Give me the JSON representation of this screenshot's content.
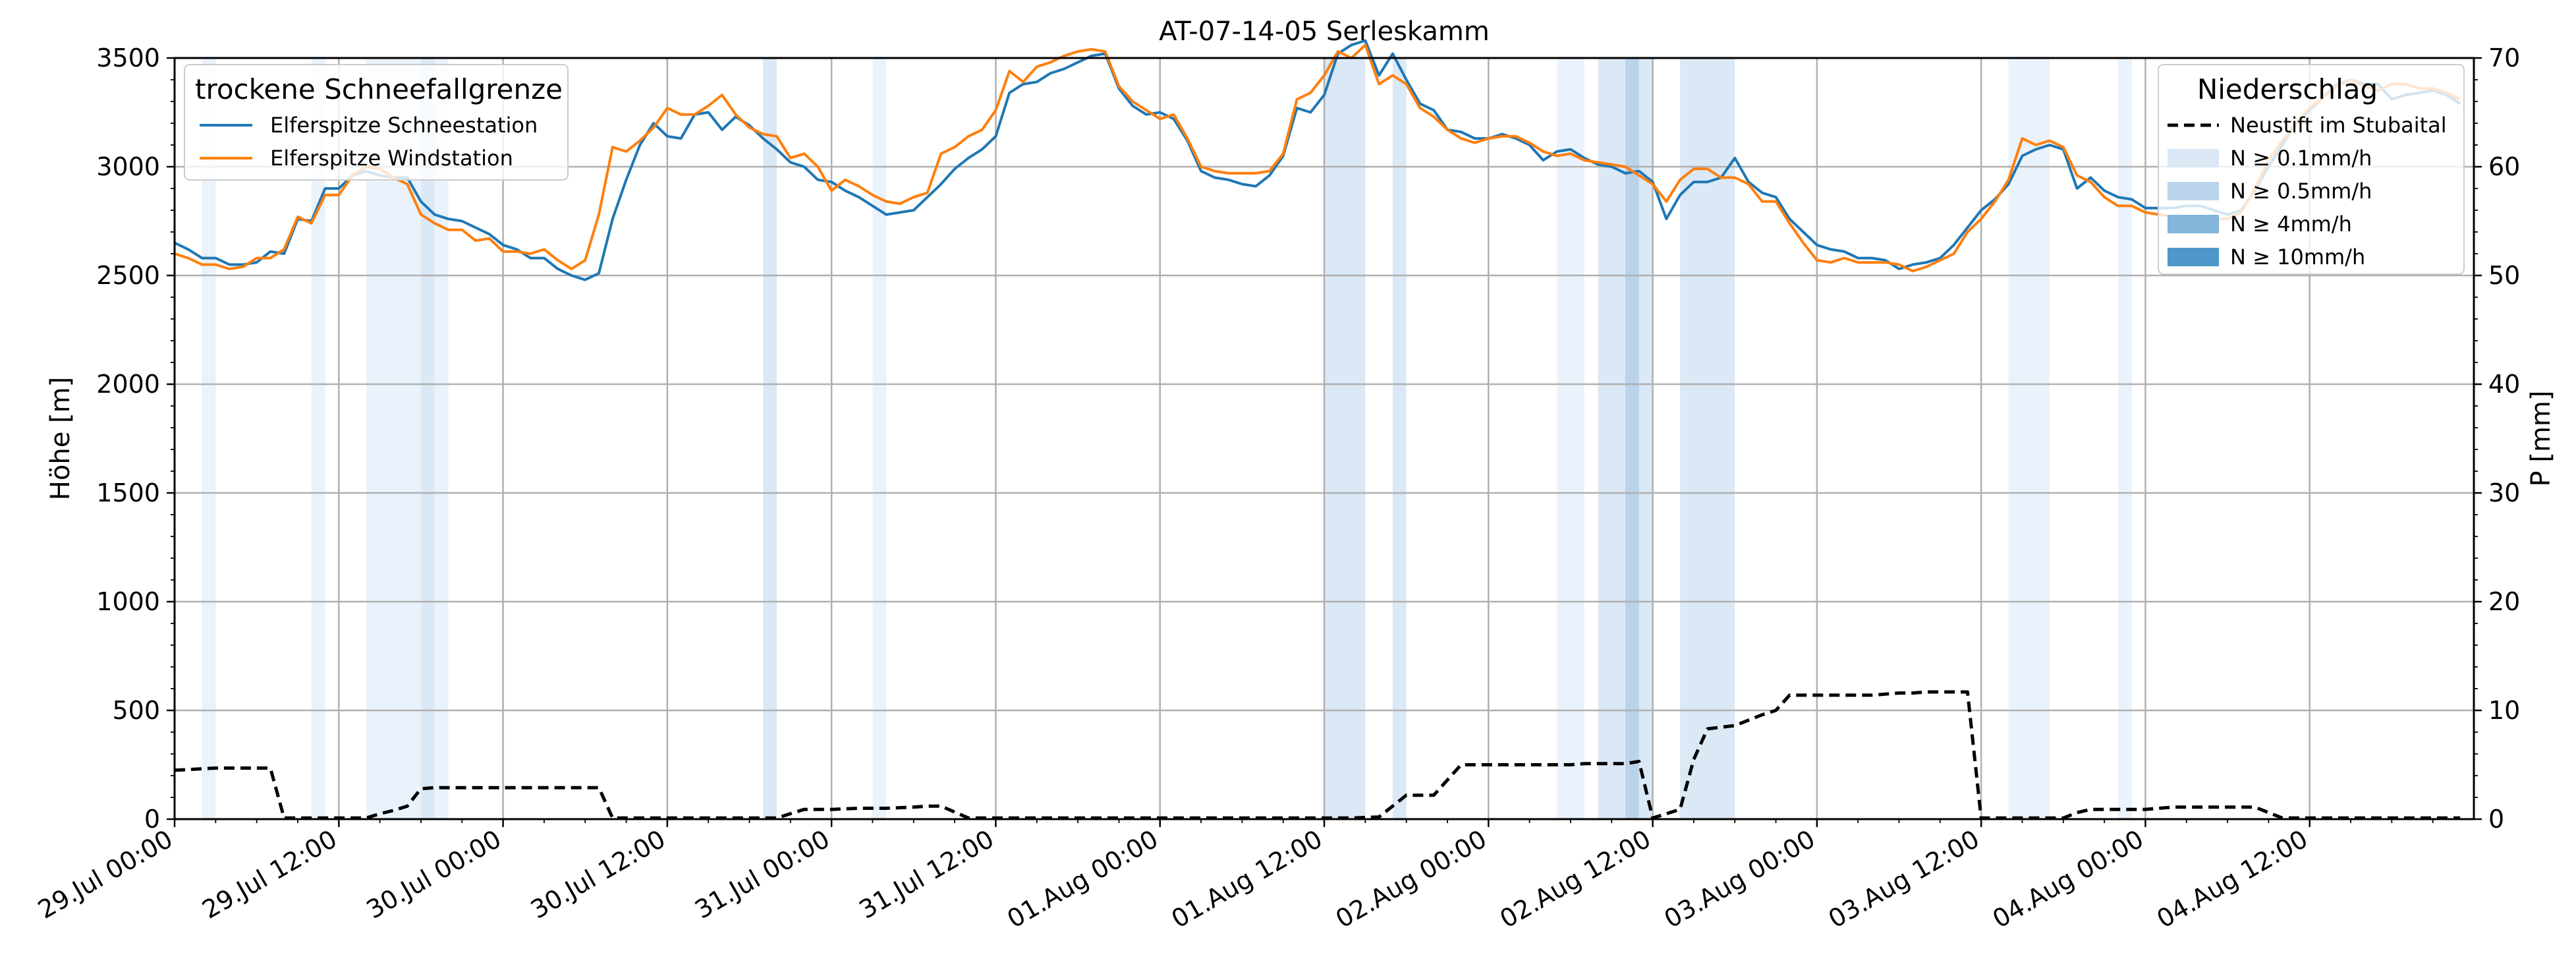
{
  "chart_data": {
    "type": "line",
    "title": "AT-07-14-05 Serleskamm",
    "ylabel": "Höhe [m]",
    "ylabel_right": "P [mm]",
    "ylim": [
      0,
      3500
    ],
    "ylim_right": [
      0,
      70
    ],
    "xlim": [
      "2025-07-29T00:00",
      "2025-08-05T00:00"
    ],
    "yticks": [
      0,
      500,
      1000,
      1500,
      2000,
      2500,
      3000,
      3500
    ],
    "yticks_right": [
      0,
      10,
      20,
      30,
      40,
      50,
      60,
      70
    ],
    "xtick_times": [
      "2025-07-29T00:00",
      "2025-07-29T12:00",
      "2025-07-30T00:00",
      "2025-07-30T12:00",
      "2025-07-31T00:00",
      "2025-07-31T12:00",
      "2025-08-01T00:00",
      "2025-08-01T12:00",
      "2025-08-02T00:00",
      "2025-08-02T12:00",
      "2025-08-03T00:00",
      "2025-08-03T12:00",
      "2025-08-04T00:00",
      "2025-08-04T12:00"
    ],
    "xtick_labels": [
      "29.Jul 00:00",
      "29.Jul 12:00",
      "30.Jul 00:00",
      "30.Jul 12:00",
      "31.Jul 00:00",
      "31.Jul 12:00",
      "01.Aug 00:00",
      "01.Aug 12:00",
      "02.Aug 00:00",
      "02.Aug 12:00",
      "03.Aug 00:00",
      "03.Aug 12:00",
      "04.Aug 00:00",
      "04.Aug 12:00"
    ],
    "grid": true,
    "legend_left": {
      "title": "trockene Schneefallgrenze",
      "placement": "upper-left",
      "entries": [
        "Elferspitze Schneestation",
        "Elferspitze Windstation"
      ]
    },
    "legend_right": {
      "title": "Niederschlag",
      "placement": "upper-right",
      "entries": [
        "Neustift im Stubaital",
        "N ≥ 0.1mm/h",
        "N ≥ 0.5mm/h",
        "N ≥ 4mm/h",
        "N ≥ 10mm/h"
      ]
    },
    "colors": {
      "schneestation": "#1f77b4",
      "windstation": "#ff7f0e",
      "precip": "#000000",
      "n01": "#dbe8f5",
      "n05": "#b9d3ea",
      "n4": "#82b6db",
      "n10": "#4d97c9",
      "band_light": "#eaf2fb",
      "grid": "#b0b0b0"
    },
    "series": [
      {
        "name": "Elferspitze Schneestation",
        "color": "#1f77b4",
        "x": [
          0,
          1,
          2,
          3,
          4,
          5,
          6,
          7,
          8,
          9,
          10,
          11,
          12,
          13,
          14,
          15,
          16,
          17,
          18,
          19,
          20,
          21,
          22,
          23,
          24,
          25,
          26,
          27,
          28,
          29,
          30,
          31,
          32,
          33,
          34,
          35,
          36,
          37,
          38,
          39,
          40,
          41,
          42,
          43,
          44,
          45,
          46,
          47,
          48,
          49,
          50,
          51,
          52,
          53,
          54,
          55,
          56,
          57,
          58,
          59,
          60,
          61,
          62,
          63,
          64,
          65,
          66,
          67,
          68,
          69,
          70,
          71,
          72,
          73,
          74,
          75,
          76,
          77,
          78,
          79,
          80,
          81,
          82,
          83,
          84,
          85,
          86,
          87,
          88,
          89,
          90,
          91,
          92,
          93,
          94,
          95,
          96,
          97,
          98,
          99,
          100,
          101,
          102,
          103,
          104,
          105,
          106,
          107,
          108,
          109,
          110,
          111,
          112,
          113,
          114,
          115,
          116,
          117,
          118,
          119,
          120,
          121,
          122,
          123,
          124,
          125,
          126,
          127,
          128,
          129,
          130,
          131,
          132,
          133,
          134,
          135,
          136,
          137,
          138,
          139,
          140,
          141,
          142,
          143,
          144,
          145,
          146,
          147,
          148,
          149,
          150,
          151,
          152,
          153,
          154,
          155,
          156,
          157,
          158,
          159,
          160,
          161,
          162,
          163,
          164,
          165,
          166,
          167
        ],
        "values": [
          2650,
          2620,
          2580,
          2580,
          2550,
          2550,
          2560,
          2610,
          2600,
          2760,
          2750,
          2900,
          2900,
          2960,
          2980,
          2960,
          2950,
          2950,
          2840,
          2780,
          2760,
          2750,
          2720,
          2690,
          2640,
          2620,
          2580,
          2580,
          2530,
          2500,
          2480,
          2510,
          2760,
          2940,
          3100,
          3200,
          3140,
          3130,
          3240,
          3250,
          3170,
          3230,
          3190,
          3130,
          3080,
          3020,
          3000,
          2940,
          2930,
          2890,
          2860,
          2820,
          2780,
          2790,
          2800,
          2860,
          2920,
          2990,
          3040,
          3080,
          3140,
          3340,
          3380,
          3390,
          3430,
          3450,
          3480,
          3510,
          3520,
          3360,
          3280,
          3240,
          3250,
          3220,
          3120,
          2980,
          2950,
          2940,
          2920,
          2910,
          2960,
          3050,
          3270,
          3250,
          3330,
          3520,
          3560,
          3580,
          3420,
          3520,
          3400,
          3290,
          3260,
          3170,
          3160,
          3130,
          3130,
          3150,
          3130,
          3100,
          3030,
          3070,
          3080,
          3040,
          3010,
          3000,
          2970,
          2980,
          2930,
          2760,
          2870,
          2930,
          2930,
          2950,
          3040,
          2930,
          2880,
          2860,
          2760,
          2700,
          2640,
          2620,
          2610,
          2580,
          2580,
          2570,
          2530,
          2550,
          2560,
          2580,
          2640,
          2720,
          2800,
          2850,
          2920,
          3050,
          3080,
          3100,
          3080,
          2900,
          2950,
          2890,
          2860,
          2850,
          2810,
          2810,
          2810,
          2820,
          2820,
          2800,
          2780,
          2800,
          2890,
          3000,
          3100,
          3200,
          3260,
          3320,
          3380,
          3400,
          3380,
          3380,
          3310,
          3330,
          3340,
          3350,
          3330,
          3290
        ]
      },
      {
        "name": "Elferspitze Windstation",
        "color": "#ff7f0e",
        "x": [
          0,
          1,
          2,
          3,
          4,
          5,
          6,
          7,
          8,
          9,
          10,
          11,
          12,
          13,
          14,
          15,
          16,
          17,
          18,
          19,
          20,
          21,
          22,
          23,
          24,
          25,
          26,
          27,
          28,
          29,
          30,
          31,
          32,
          33,
          34,
          35,
          36,
          37,
          38,
          39,
          40,
          41,
          42,
          43,
          44,
          45,
          46,
          47,
          48,
          49,
          50,
          51,
          52,
          53,
          54,
          55,
          56,
          57,
          58,
          59,
          60,
          61,
          62,
          63,
          64,
          65,
          66,
          67,
          68,
          69,
          70,
          71,
          72,
          73,
          74,
          75,
          76,
          77,
          78,
          79,
          80,
          81,
          82,
          83,
          84,
          85,
          86,
          87,
          88,
          89,
          90,
          91,
          92,
          93,
          94,
          95,
          96,
          97,
          98,
          99,
          100,
          101,
          102,
          103,
          104,
          105,
          106,
          107,
          108,
          109,
          110,
          111,
          112,
          113,
          114,
          115,
          116,
          117,
          118,
          119,
          120,
          121,
          122,
          123,
          124,
          125,
          126,
          127,
          128,
          129,
          130,
          131,
          132,
          133,
          134,
          135,
          136,
          137,
          138,
          139,
          140,
          141,
          142,
          143,
          144,
          145,
          146,
          147,
          148,
          149,
          150,
          151,
          152,
          153,
          154,
          155,
          156,
          157,
          158,
          159,
          160,
          161,
          162,
          163,
          164,
          165,
          166,
          167
        ],
        "values": [
          2600,
          2580,
          2550,
          2550,
          2530,
          2540,
          2580,
          2580,
          2620,
          2770,
          2740,
          2870,
          2870,
          2960,
          3000,
          2990,
          2950,
          2920,
          2780,
          2740,
          2710,
          2710,
          2660,
          2670,
          2610,
          2610,
          2600,
          2620,
          2570,
          2530,
          2570,
          2780,
          3090,
          3070,
          3120,
          3180,
          3270,
          3240,
          3240,
          3280,
          3330,
          3240,
          3180,
          3150,
          3140,
          3040,
          3060,
          3000,
          2890,
          2940,
          2910,
          2870,
          2840,
          2830,
          2860,
          2880,
          3060,
          3090,
          3140,
          3170,
          3260,
          3440,
          3390,
          3460,
          3480,
          3510,
          3530,
          3540,
          3530,
          3370,
          3300,
          3260,
          3220,
          3240,
          3130,
          3000,
          2980,
          2970,
          2970,
          2970,
          2980,
          3060,
          3310,
          3340,
          3420,
          3530,
          3500,
          3560,
          3380,
          3420,
          3380,
          3270,
          3230,
          3170,
          3130,
          3110,
          3130,
          3140,
          3140,
          3110,
          3070,
          3050,
          3060,
          3030,
          3020,
          3010,
          3000,
          2960,
          2920,
          2840,
          2940,
          2990,
          2990,
          2950,
          2950,
          2920,
          2840,
          2840,
          2740,
          2650,
          2570,
          2560,
          2580,
          2560,
          2560,
          2560,
          2550,
          2520,
          2540,
          2570,
          2600,
          2700,
          2760,
          2840,
          2940,
          3130,
          3100,
          3120,
          3090,
          2960,
          2930,
          2860,
          2820,
          2820,
          2790,
          2780,
          2770,
          2770,
          2770,
          2760,
          2760,
          2790,
          2900,
          3030,
          3120,
          3200,
          3270,
          3320,
          3370,
          3400,
          3370,
          3350,
          3380,
          3380,
          3360,
          3360,
          3340,
          3310
        ]
      },
      {
        "name": "Neustift im Stubaital",
        "color": "#000000",
        "axis": "right",
        "x": [
          0,
          3,
          4,
          5,
          6,
          7,
          8,
          10,
          12,
          13,
          14,
          15,
          16,
          17,
          18,
          19,
          20,
          21,
          22,
          24,
          26,
          28,
          30,
          31,
          32,
          35,
          38,
          41,
          42,
          43,
          44,
          46,
          48,
          50,
          52,
          54,
          55,
          56,
          58,
          60,
          62,
          64,
          66,
          68,
          70,
          72,
          74,
          76,
          78,
          80,
          82,
          83,
          84,
          86,
          88,
          90,
          92,
          94,
          96,
          98,
          100,
          102,
          103,
          104,
          105,
          106,
          107,
          108,
          109,
          110,
          111,
          112,
          114,
          115,
          116,
          117,
          118,
          120,
          122,
          124,
          126,
          127,
          128,
          129,
          130,
          131,
          132,
          134,
          136,
          138,
          139,
          140,
          142,
          144,
          146,
          148,
          150,
          151,
          152,
          154,
          156,
          158,
          160,
          162,
          164,
          166,
          167
        ],
        "values": [
          4.5,
          4.7,
          4.7,
          4.7,
          4.7,
          4.7,
          0.1,
          0.1,
          0.1,
          0.1,
          0.1,
          0.5,
          0.8,
          1.2,
          2.8,
          2.9,
          2.9,
          2.9,
          2.9,
          2.9,
          2.9,
          2.9,
          2.9,
          2.9,
          0.1,
          0.1,
          0.1,
          0.1,
          0.1,
          0.1,
          0.1,
          0.9,
          0.9,
          1.0,
          1.0,
          1.1,
          1.2,
          1.2,
          0.1,
          0.1,
          0.1,
          0.1,
          0.1,
          0.1,
          0.1,
          0.1,
          0.1,
          0.1,
          0.1,
          0.1,
          0.1,
          0.1,
          0.1,
          0.1,
          0.2,
          2.2,
          2.2,
          5.0,
          5.0,
          5.0,
          5.0,
          5.0,
          5.1,
          5.1,
          5.1,
          5.1,
          5.3,
          0.1,
          0.5,
          0.9,
          5.5,
          8.3,
          8.6,
          9.1,
          9.6,
          10.0,
          11.4,
          11.4,
          11.4,
          11.4,
          11.6,
          11.6,
          11.7,
          11.7,
          11.7,
          11.7,
          0.1,
          0.1,
          0.1,
          0.1,
          0.6,
          0.9,
          0.9,
          0.9,
          1.1,
          1.1,
          1.1,
          1.1,
          1.1,
          0.1,
          0.1,
          0.1,
          0.1,
          0.1,
          0.1,
          0.1,
          0.1
        ]
      }
    ],
    "precip_bands": [
      {
        "start": 2.0,
        "end": 3.0,
        "level": "light"
      },
      {
        "start": 10.0,
        "end": 11.0,
        "level": "light"
      },
      {
        "start": 14.0,
        "end": 18.0,
        "level": "light"
      },
      {
        "start": 18.0,
        "end": 19.0,
        "level": "N ≥ 0.1mm/h"
      },
      {
        "start": 19.0,
        "end": 20.0,
        "level": "light"
      },
      {
        "start": 43.0,
        "end": 44.0,
        "level": "N ≥ 0.1mm/h"
      },
      {
        "start": 51.0,
        "end": 52.0,
        "level": "light"
      },
      {
        "start": 84.0,
        "end": 87.0,
        "level": "N ≥ 0.1mm/h"
      },
      {
        "start": 89.0,
        "end": 90.0,
        "level": "N ≥ 0.1mm/h"
      },
      {
        "start": 101.0,
        "end": 103.0,
        "level": "light"
      },
      {
        "start": 104.0,
        "end": 107.0,
        "level": "N ≥ 0.1mm/h"
      },
      {
        "start": 106.0,
        "end": 107.0,
        "level": "N ≥ 0.5mm/h"
      },
      {
        "start": 107.0,
        "end": 108.0,
        "level": "N ≥ 0.1mm/h"
      },
      {
        "start": 110.0,
        "end": 114.0,
        "level": "N ≥ 0.1mm/h"
      },
      {
        "start": 134.0,
        "end": 137.0,
        "level": "light"
      },
      {
        "start": 142.0,
        "end": 143.0,
        "level": "light"
      }
    ]
  }
}
